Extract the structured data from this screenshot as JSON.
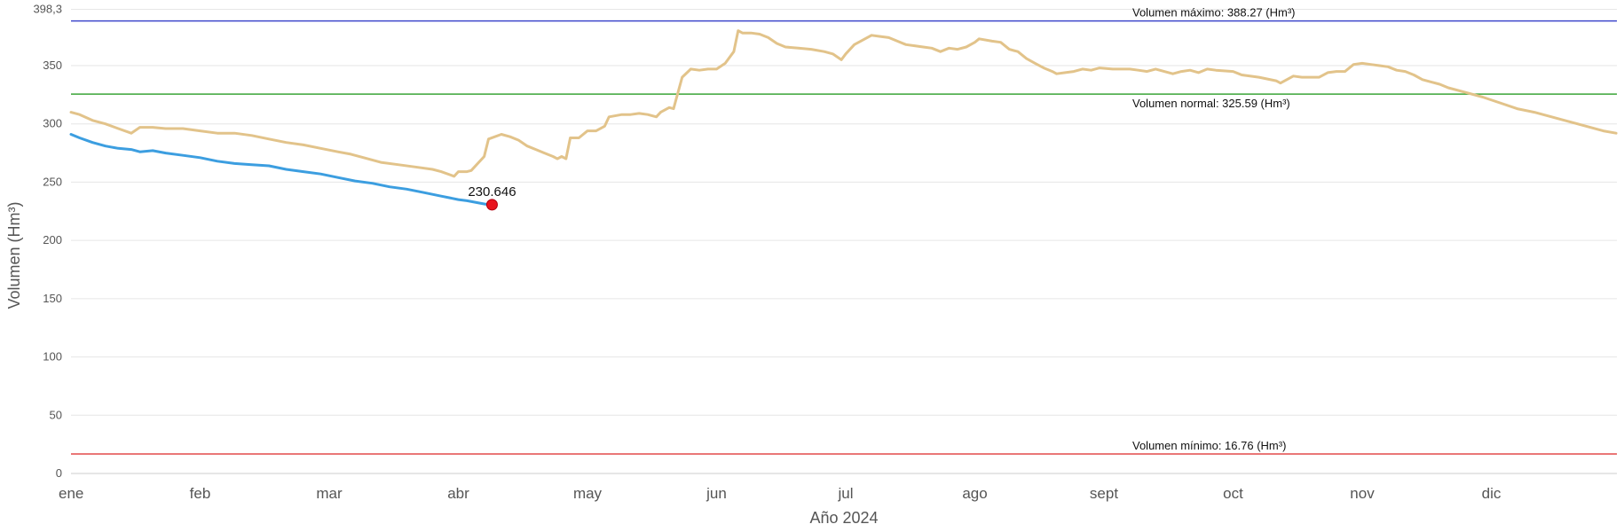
{
  "chart_data": {
    "type": "line",
    "xlabel": "Año 2024",
    "ylabel": "Volumen (Hm³)",
    "ylim": [
      0,
      398.3
    ],
    "y_top_label": "398,3",
    "y_ticks": [
      0,
      50,
      100,
      150,
      200,
      250,
      300,
      350
    ],
    "x_ticks": [
      "ene",
      "feb",
      "mar",
      "abr",
      "may",
      "jun",
      "jul",
      "ago",
      "sept",
      "oct",
      "nov",
      "dic"
    ],
    "grid": true,
    "reference_lines": [
      {
        "label": "Volumen máximo: 388.27 (Hm³)",
        "value": 388.27,
        "color": "#3f48cc"
      },
      {
        "label": "Volumen normal: 325.59 (Hm³)",
        "value": 325.59,
        "color": "#3aa537"
      },
      {
        "label": "Volumen mínimo: 16.76 (Hm³)",
        "value": 16.76,
        "color": "#e34a4a"
      }
    ],
    "series": [
      {
        "color": "#e2c38a",
        "points": [
          [
            0.0,
            310
          ],
          [
            0.1,
            308
          ],
          [
            0.25,
            303
          ],
          [
            0.4,
            300
          ],
          [
            0.55,
            296
          ],
          [
            0.7,
            292
          ],
          [
            0.8,
            297
          ],
          [
            0.95,
            297
          ],
          [
            1.1,
            296
          ],
          [
            1.3,
            296
          ],
          [
            1.5,
            294
          ],
          [
            1.7,
            292
          ],
          [
            1.9,
            292
          ],
          [
            2.1,
            290
          ],
          [
            2.3,
            287
          ],
          [
            2.5,
            284
          ],
          [
            2.7,
            282
          ],
          [
            2.9,
            279
          ],
          [
            3.1,
            276
          ],
          [
            3.25,
            274
          ],
          [
            3.4,
            271
          ],
          [
            3.6,
            267
          ],
          [
            3.8,
            265
          ],
          [
            4.0,
            263
          ],
          [
            4.2,
            261
          ],
          [
            4.3,
            259
          ],
          [
            4.45,
            255
          ],
          [
            4.5,
            259
          ],
          [
            4.6,
            259
          ],
          [
            4.65,
            260
          ],
          [
            4.8,
            272
          ],
          [
            4.85,
            287
          ],
          [
            5.0,
            291
          ],
          [
            5.1,
            289
          ],
          [
            5.2,
            286
          ],
          [
            5.3,
            281
          ],
          [
            5.4,
            278
          ],
          [
            5.5,
            275
          ],
          [
            5.6,
            272
          ],
          [
            5.65,
            270
          ],
          [
            5.7,
            272
          ],
          [
            5.75,
            270
          ],
          [
            5.8,
            288
          ],
          [
            5.9,
            288
          ],
          [
            6.0,
            294
          ],
          [
            6.1,
            294
          ],
          [
            6.2,
            298
          ],
          [
            6.25,
            306
          ],
          [
            6.4,
            308
          ],
          [
            6.5,
            308
          ],
          [
            6.6,
            309
          ],
          [
            6.7,
            308
          ],
          [
            6.8,
            306
          ],
          [
            6.85,
            310
          ],
          [
            6.95,
            314
          ],
          [
            7.0,
            313
          ],
          [
            7.1,
            340
          ],
          [
            7.2,
            347
          ],
          [
            7.3,
            346
          ],
          [
            7.4,
            347
          ],
          [
            7.5,
            347
          ],
          [
            7.6,
            352
          ],
          [
            7.7,
            362
          ],
          [
            7.75,
            380
          ],
          [
            7.8,
            378
          ],
          [
            7.9,
            378
          ],
          [
            8.0,
            377
          ],
          [
            8.1,
            374
          ],
          [
            8.2,
            369
          ],
          [
            8.3,
            366
          ],
          [
            8.45,
            365
          ],
          [
            8.6,
            364
          ],
          [
            8.75,
            362
          ],
          [
            8.85,
            360
          ],
          [
            8.95,
            355
          ],
          [
            9.0,
            360
          ],
          [
            9.1,
            368
          ],
          [
            9.2,
            372
          ],
          [
            9.3,
            376
          ],
          [
            9.4,
            375
          ],
          [
            9.5,
            374
          ],
          [
            9.6,
            371
          ],
          [
            9.7,
            368
          ],
          [
            9.8,
            367
          ],
          [
            9.9,
            366
          ],
          [
            10.0,
            365
          ],
          [
            10.1,
            362
          ],
          [
            10.2,
            365
          ],
          [
            10.3,
            364
          ],
          [
            10.4,
            366
          ],
          [
            10.5,
            370
          ],
          [
            10.55,
            373
          ],
          [
            10.7,
            371
          ],
          [
            10.8,
            370
          ],
          [
            10.9,
            364
          ],
          [
            11.0,
            362
          ],
          [
            11.1,
            356
          ],
          [
            11.2,
            352
          ],
          [
            11.3,
            348
          ],
          [
            11.4,
            345
          ],
          [
            11.45,
            343
          ],
          [
            11.55,
            344
          ],
          [
            11.65,
            345
          ],
          [
            11.75,
            347
          ],
          [
            11.85,
            346
          ],
          [
            11.95,
            348
          ],
          [
            12.1,
            347
          ],
          [
            12.3,
            347
          ],
          [
            12.4,
            346
          ],
          [
            12.5,
            345
          ],
          [
            12.6,
            347
          ],
          [
            12.7,
            345
          ],
          [
            12.8,
            343
          ],
          [
            12.9,
            345
          ],
          [
            13.0,
            346
          ],
          [
            13.1,
            344
          ],
          [
            13.2,
            347
          ],
          [
            13.3,
            346
          ],
          [
            13.5,
            345
          ],
          [
            13.6,
            342
          ],
          [
            13.8,
            340
          ],
          [
            14.0,
            337
          ],
          [
            14.05,
            335
          ],
          [
            14.2,
            341
          ],
          [
            14.3,
            340
          ],
          [
            14.5,
            340
          ],
          [
            14.6,
            344
          ],
          [
            14.7,
            345
          ],
          [
            14.8,
            345
          ],
          [
            14.9,
            351
          ],
          [
            15.0,
            352
          ],
          [
            15.1,
            351
          ],
          [
            15.2,
            350
          ],
          [
            15.3,
            349
          ],
          [
            15.4,
            346
          ],
          [
            15.5,
            345
          ],
          [
            15.6,
            342
          ],
          [
            15.7,
            338
          ],
          [
            15.8,
            336
          ],
          [
            15.9,
            334
          ],
          [
            16.0,
            331
          ],
          [
            16.2,
            327
          ],
          [
            16.4,
            323
          ],
          [
            16.6,
            318
          ],
          [
            16.8,
            313
          ],
          [
            17.0,
            310
          ],
          [
            17.2,
            306
          ],
          [
            17.4,
            302
          ],
          [
            17.6,
            298
          ],
          [
            17.8,
            294
          ],
          [
            17.95,
            292
          ]
        ]
      },
      {
        "color": "#3c9ee0",
        "points": [
          [
            0.0,
            291
          ],
          [
            0.1,
            288
          ],
          [
            0.25,
            284
          ],
          [
            0.4,
            281
          ],
          [
            0.55,
            279
          ],
          [
            0.7,
            278
          ],
          [
            0.8,
            276
          ],
          [
            0.95,
            277
          ],
          [
            1.1,
            275
          ],
          [
            1.3,
            273
          ],
          [
            1.5,
            271
          ],
          [
            1.7,
            268
          ],
          [
            1.9,
            266
          ],
          [
            2.1,
            265
          ],
          [
            2.3,
            264
          ],
          [
            2.5,
            261
          ],
          [
            2.7,
            259
          ],
          [
            2.9,
            257
          ],
          [
            3.1,
            254
          ],
          [
            3.3,
            251
          ],
          [
            3.5,
            249
          ],
          [
            3.7,
            246
          ],
          [
            3.9,
            244
          ],
          [
            4.1,
            241
          ],
          [
            4.3,
            238
          ],
          [
            4.5,
            235
          ],
          [
            4.6,
            234
          ],
          [
            4.75,
            232
          ],
          [
            4.85,
            230.646
          ]
        ]
      }
    ],
    "last_value_label": "230.646",
    "last_value_marker_color": "#e8141e"
  }
}
